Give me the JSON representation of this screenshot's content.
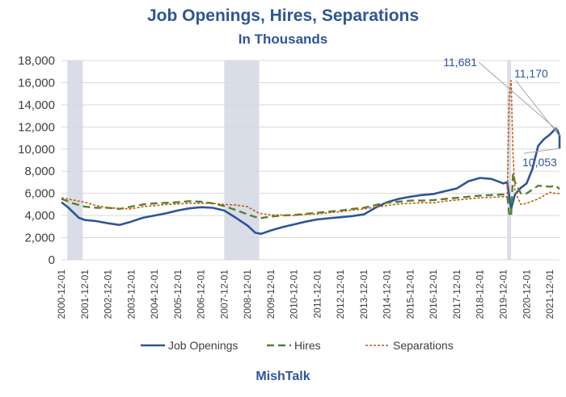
{
  "chart_data": {
    "type": "line",
    "title": "Job Openings, Hires, Separations",
    "subtitle": "In Thousands",
    "source": "MishTalk",
    "ylim": [
      0,
      18000
    ],
    "yticks": [
      "0",
      "2,000",
      "4,000",
      "6,000",
      "8,000",
      "10,000",
      "12,000",
      "14,000",
      "16,000",
      "18,000"
    ],
    "xlim": [
      "2000-12",
      "2022-05"
    ],
    "xticks": [
      "2000-12-01",
      "2001-12-01",
      "2002-12-01",
      "2003-12-01",
      "2004-12-01",
      "2005-12-01",
      "2006-12-01",
      "2007-12-01",
      "2008-12-01",
      "2009-12-01",
      "2010-12-01",
      "2011-12-01",
      "2012-12-01",
      "2013-12-01",
      "2014-12-01",
      "2015-12-01",
      "2016-12-01",
      "2017-12-01",
      "2018-12-01",
      "2019-12-01",
      "2020-12-01",
      "2021-12-01"
    ],
    "recessions": [
      [
        "2001-03",
        "2001-11"
      ],
      [
        "2007-12",
        "2009-06"
      ],
      [
        "2020-02",
        "2020-04"
      ]
    ],
    "series": [
      {
        "name": "Job Openings",
        "color": "#2f5597",
        "style": "solid",
        "points": [
          [
            "2000-12",
            5200
          ],
          [
            "2001-03",
            4800
          ],
          [
            "2001-06",
            4300
          ],
          [
            "2001-09",
            3800
          ],
          [
            "2001-12",
            3600
          ],
          [
            "2002-06",
            3500
          ],
          [
            "2002-12",
            3300
          ],
          [
            "2003-06",
            3150
          ],
          [
            "2003-12",
            3450
          ],
          [
            "2004-06",
            3800
          ],
          [
            "2004-12",
            4000
          ],
          [
            "2005-06",
            4200
          ],
          [
            "2005-12",
            4450
          ],
          [
            "2006-06",
            4650
          ],
          [
            "2006-12",
            4750
          ],
          [
            "2007-06",
            4700
          ],
          [
            "2007-12",
            4450
          ],
          [
            "2008-06",
            3800
          ],
          [
            "2008-12",
            3100
          ],
          [
            "2009-04",
            2450
          ],
          [
            "2009-07",
            2350
          ],
          [
            "2009-12",
            2650
          ],
          [
            "2010-06",
            2950
          ],
          [
            "2010-12",
            3200
          ],
          [
            "2011-06",
            3450
          ],
          [
            "2011-12",
            3650
          ],
          [
            "2012-06",
            3750
          ],
          [
            "2012-12",
            3850
          ],
          [
            "2013-06",
            3950
          ],
          [
            "2013-12",
            4100
          ],
          [
            "2014-06",
            4700
          ],
          [
            "2014-12",
            5200
          ],
          [
            "2015-06",
            5500
          ],
          [
            "2015-12",
            5700
          ],
          [
            "2016-06",
            5850
          ],
          [
            "2016-12",
            5950
          ],
          [
            "2017-06",
            6200
          ],
          [
            "2017-12",
            6450
          ],
          [
            "2018-06",
            7100
          ],
          [
            "2018-12",
            7400
          ],
          [
            "2019-06",
            7300
          ],
          [
            "2019-12",
            6900
          ],
          [
            "2020-02",
            7000
          ],
          [
            "2020-04",
            4600
          ],
          [
            "2020-06",
            5900
          ],
          [
            "2020-09",
            6500
          ],
          [
            "2020-12",
            6900
          ],
          [
            "2021-03",
            8200
          ],
          [
            "2021-06",
            10300
          ],
          [
            "2021-09",
            10900
          ],
          [
            "2021-12",
            11300
          ],
          [
            "2022-03",
            11855
          ],
          [
            "2022-04",
            11681
          ],
          [
            "2022-05",
            11170
          ],
          [
            "2022-05",
            10053
          ]
        ]
      },
      {
        "name": "Hires",
        "color": "#548235",
        "style": "dash",
        "points": [
          [
            "2000-12",
            5500
          ],
          [
            "2001-06",
            5100
          ],
          [
            "2001-12",
            4800
          ],
          [
            "2002-06",
            4700
          ],
          [
            "2002-12",
            4700
          ],
          [
            "2003-06",
            4600
          ],
          [
            "2003-12",
            4800
          ],
          [
            "2004-06",
            5000
          ],
          [
            "2004-12",
            5100
          ],
          [
            "2005-06",
            5150
          ],
          [
            "2005-12",
            5200
          ],
          [
            "2006-06",
            5300
          ],
          [
            "2006-12",
            5250
          ],
          [
            "2007-06",
            5100
          ],
          [
            "2007-12",
            4850
          ],
          [
            "2008-06",
            4500
          ],
          [
            "2008-12",
            4100
          ],
          [
            "2009-06",
            3750
          ],
          [
            "2009-12",
            3900
          ],
          [
            "2010-06",
            4000
          ],
          [
            "2010-12",
            4050
          ],
          [
            "2011-06",
            4150
          ],
          [
            "2011-12",
            4250
          ],
          [
            "2012-06",
            4350
          ],
          [
            "2012-12",
            4450
          ],
          [
            "2013-06",
            4600
          ],
          [
            "2013-12",
            4700
          ],
          [
            "2014-06",
            4950
          ],
          [
            "2014-12",
            5150
          ],
          [
            "2015-06",
            5250
          ],
          [
            "2015-12",
            5350
          ],
          [
            "2016-06",
            5350
          ],
          [
            "2016-12",
            5400
          ],
          [
            "2017-06",
            5500
          ],
          [
            "2017-12",
            5600
          ],
          [
            "2018-06",
            5700
          ],
          [
            "2018-12",
            5800
          ],
          [
            "2019-06",
            5850
          ],
          [
            "2019-12",
            5900
          ],
          [
            "2020-02",
            5800
          ],
          [
            "2020-03",
            4200
          ],
          [
            "2020-04",
            3900
          ],
          [
            "2020-05",
            7800
          ],
          [
            "2020-06",
            7000
          ],
          [
            "2020-09",
            6000
          ],
          [
            "2020-12",
            6000
          ],
          [
            "2021-06",
            6700
          ],
          [
            "2021-12",
            6600
          ],
          [
            "2022-03",
            6700
          ],
          [
            "2022-05",
            6400
          ]
        ]
      },
      {
        "name": "Separations",
        "color": "#c55a11",
        "style": "dot",
        "points": [
          [
            "2000-12",
            5600
          ],
          [
            "2001-06",
            5400
          ],
          [
            "2001-12",
            5200
          ],
          [
            "2002-06",
            4900
          ],
          [
            "2002-12",
            4700
          ],
          [
            "2003-06",
            4650
          ],
          [
            "2003-12",
            4600
          ],
          [
            "2004-06",
            4800
          ],
          [
            "2004-12",
            4900
          ],
          [
            "2005-06",
            5000
          ],
          [
            "2005-12",
            5050
          ],
          [
            "2006-06",
            5100
          ],
          [
            "2006-12",
            5100
          ],
          [
            "2007-06",
            5100
          ],
          [
            "2007-12",
            5000
          ],
          [
            "2008-06",
            4950
          ],
          [
            "2008-12",
            4800
          ],
          [
            "2009-06",
            4200
          ],
          [
            "2009-12",
            4050
          ],
          [
            "2010-06",
            4050
          ],
          [
            "2010-12",
            4000
          ],
          [
            "2011-06",
            4100
          ],
          [
            "2011-12",
            4150
          ],
          [
            "2012-06",
            4250
          ],
          [
            "2012-12",
            4350
          ],
          [
            "2013-06",
            4500
          ],
          [
            "2013-12",
            4600
          ],
          [
            "2014-06",
            4750
          ],
          [
            "2014-12",
            4900
          ],
          [
            "2015-06",
            5050
          ],
          [
            "2015-12",
            5100
          ],
          [
            "2016-06",
            5150
          ],
          [
            "2016-12",
            5150
          ],
          [
            "2017-06",
            5300
          ],
          [
            "2017-12",
            5400
          ],
          [
            "2018-06",
            5500
          ],
          [
            "2018-12",
            5600
          ],
          [
            "2019-06",
            5650
          ],
          [
            "2019-12",
            5700
          ],
          [
            "2020-02",
            5700
          ],
          [
            "2020-03",
            14600
          ],
          [
            "2020-04",
            16200
          ],
          [
            "2020-05",
            9500
          ],
          [
            "2020-06",
            6200
          ],
          [
            "2020-09",
            5000
          ],
          [
            "2020-12",
            5100
          ],
          [
            "2021-06",
            5500
          ],
          [
            "2021-12",
            6100
          ],
          [
            "2022-03",
            6000
          ],
          [
            "2022-05",
            6000
          ]
        ]
      }
    ],
    "annotations": [
      {
        "text": "11,681",
        "date": "2022-04",
        "value": 11681
      },
      {
        "text": "11,170",
        "date": "2022-05",
        "value": 11170
      },
      {
        "text": "10,053",
        "date": "2022-05",
        "value": 10053
      }
    ]
  }
}
